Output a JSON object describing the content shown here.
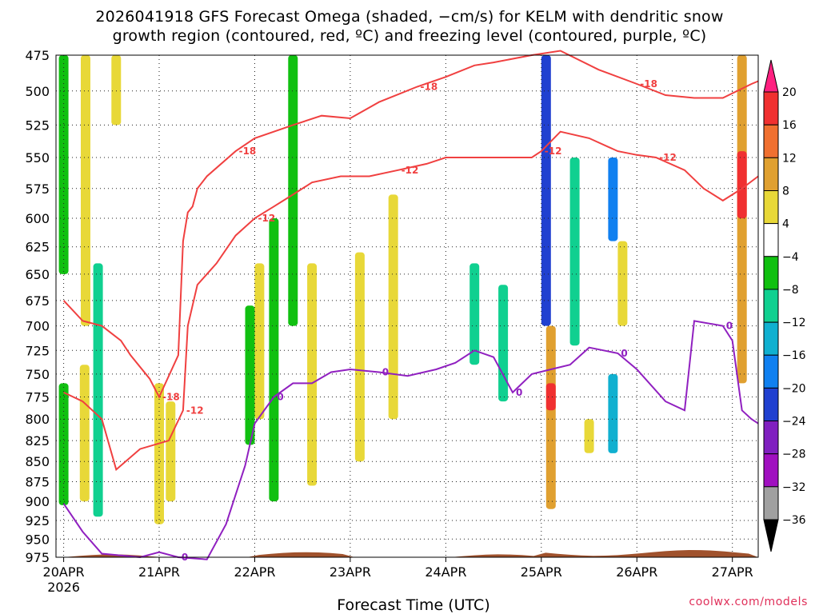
{
  "title_line1": "2026041918 GFS Forecast Omega (shaded, −cm/s) for KELM with dendritic snow",
  "title_line2": "growth region (contoured, red, ºC) and freezing level (contoured, purple, ºC)",
  "credit": "coolwx.com/models",
  "chart_data": {
    "type": "heatmap",
    "title": "2026041918 GFS Forecast Omega (shaded, −cm/s) for KELM with dendritic snow growth region (contoured, red, ºC) and freezing level (contoured, purple, ºC)",
    "xlabel": "Forecast Time (UTC)",
    "ylabel": "",
    "x_ticks": [
      "20APR",
      "21APR",
      "22APR",
      "23APR",
      "24APR",
      "25APR",
      "26APR",
      "27APR"
    ],
    "x_tick_year": "2026",
    "xlim_days": [
      19.92,
      27.27
    ],
    "y_ticks": [
      475,
      500,
      525,
      550,
      575,
      600,
      625,
      650,
      675,
      700,
      725,
      750,
      775,
      800,
      825,
      850,
      875,
      900,
      925,
      950,
      975
    ],
    "ylim_hpa": [
      475,
      975
    ],
    "y_scale": "log-pressure (inverted)",
    "grid": "dotted",
    "colorbar": {
      "labels": [
        "20",
        "16",
        "12",
        "8",
        "4",
        "−4",
        "−8",
        "−12",
        "−16",
        "−20",
        "−24",
        "−28",
        "−32",
        "−36"
      ],
      "colors": [
        "#ff2080",
        "#f03030",
        "#f07030",
        "#e0a030",
        "#e8d838",
        "#ffffff",
        "#10c010",
        "#10d090",
        "#10b0d0",
        "#1080f0",
        "#2040d0",
        "#8020c0",
        "#a010c0",
        "#a0a0a0",
        "#000000"
      ]
    },
    "contours": [
      {
        "name": "−18",
        "color": "#f04040",
        "labels": [
          "-18",
          "-18",
          "-18",
          "-18"
        ]
      },
      {
        "name": "−12",
        "color": "#f04040",
        "labels": [
          "-12",
          "-12",
          "-12",
          "-12",
          "-12"
        ]
      },
      {
        "name": "0",
        "color": "#9020c0",
        "labels": [
          "0",
          "0",
          "0",
          "0",
          "0",
          "0"
        ]
      }
    ],
    "shaded_regions": [
      {
        "day": 20.0,
        "p_top": 475,
        "p_bot": 650,
        "value": -6
      },
      {
        "day": 20.0,
        "p_top": 760,
        "p_bot": 905,
        "value": -6
      },
      {
        "day": 20.23,
        "p_top": 475,
        "p_bot": 700,
        "value": 5
      },
      {
        "day": 20.22,
        "p_top": 740,
        "p_bot": 900,
        "value": 5
      },
      {
        "day": 20.36,
        "p_top": 640,
        "p_bot": 920,
        "value": -10
      },
      {
        "day": 20.55,
        "p_top": 475,
        "p_bot": 525,
        "value": 5
      },
      {
        "day": 21.0,
        "p_top": 760,
        "p_bot": 930,
        "value": 5
      },
      {
        "day": 21.12,
        "p_top": 780,
        "p_bot": 900,
        "value": 5
      },
      {
        "day": 21.95,
        "p_top": 680,
        "p_bot": 830,
        "value": -6
      },
      {
        "day": 22.05,
        "p_top": 640,
        "p_bot": 800,
        "value": 5
      },
      {
        "day": 22.2,
        "p_top": 600,
        "p_bot": 900,
        "value": -7
      },
      {
        "day": 22.4,
        "p_top": 475,
        "p_bot": 700,
        "value": -6
      },
      {
        "day": 22.6,
        "p_top": 640,
        "p_bot": 880,
        "value": 5
      },
      {
        "day": 23.1,
        "p_top": 630,
        "p_bot": 850,
        "value": 5
      },
      {
        "day": 23.45,
        "p_top": 580,
        "p_bot": 800,
        "value": 5
      },
      {
        "day": 24.3,
        "p_top": 640,
        "p_bot": 740,
        "value": -8
      },
      {
        "day": 24.6,
        "p_top": 660,
        "p_bot": 780,
        "value": -8
      },
      {
        "day": 25.05,
        "p_top": 475,
        "p_bot": 700,
        "value": -22
      },
      {
        "day": 25.1,
        "p_top": 700,
        "p_bot": 910,
        "value": 10
      },
      {
        "day": 25.1,
        "p_top": 760,
        "p_bot": 790,
        "value": 18
      },
      {
        "day": 25.35,
        "p_top": 550,
        "p_bot": 720,
        "value": -10
      },
      {
        "day": 25.5,
        "p_top": 800,
        "p_bot": 840,
        "value": 5
      },
      {
        "day": 25.75,
        "p_top": 550,
        "p_bot": 620,
        "value": -16
      },
      {
        "day": 25.75,
        "p_top": 750,
        "p_bot": 840,
        "value": -12
      },
      {
        "day": 25.85,
        "p_top": 620,
        "p_bot": 700,
        "value": 6
      },
      {
        "day": 27.1,
        "p_top": 475,
        "p_bot": 760,
        "value": 10
      },
      {
        "day": 27.1,
        "p_top": 545,
        "p_bot": 600,
        "value": 18
      }
    ]
  }
}
